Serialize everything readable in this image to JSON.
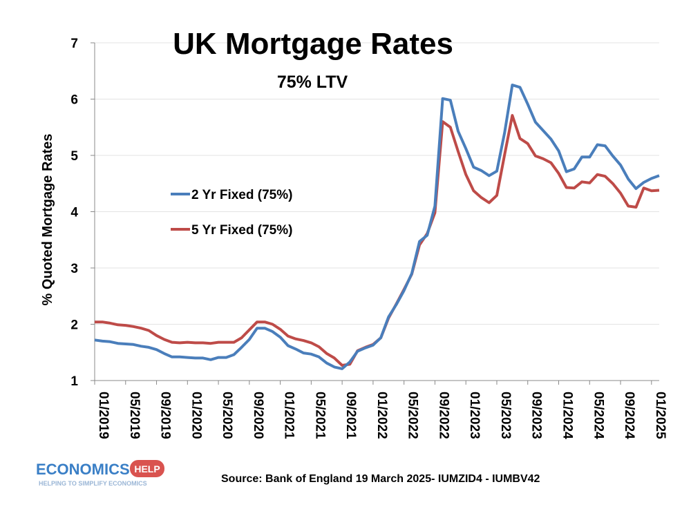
{
  "chart_data": {
    "type": "line",
    "title": "UK Mortgage Rates",
    "subtitle": "75% LTV",
    "ylabel": "% Quoted Mortgage Rates",
    "xlabel": "",
    "ylim": [
      1,
      7
    ],
    "yticks": [
      1,
      2,
      3,
      4,
      5,
      6,
      7
    ],
    "x_tick_labels": [
      "01/2019",
      "05/2019",
      "09/2019",
      "01/2020",
      "05/2020",
      "09/2020",
      "01/2021",
      "05/2021",
      "09/2021",
      "01/2022",
      "05/2022",
      "09/2022",
      "01/2023",
      "05/2023",
      "09/2023",
      "01/2024",
      "05/2024",
      "09/2024",
      "01/2025"
    ],
    "x": [
      "2019-01",
      "2019-02",
      "2019-03",
      "2019-04",
      "2019-05",
      "2019-06",
      "2019-07",
      "2019-08",
      "2019-09",
      "2019-10",
      "2019-11",
      "2019-12",
      "2020-01",
      "2020-02",
      "2020-03",
      "2020-04",
      "2020-05",
      "2020-06",
      "2020-07",
      "2020-08",
      "2020-09",
      "2020-10",
      "2020-11",
      "2020-12",
      "2021-01",
      "2021-02",
      "2021-03",
      "2021-04",
      "2021-05",
      "2021-06",
      "2021-07",
      "2021-08",
      "2021-09",
      "2021-10",
      "2021-11",
      "2021-12",
      "2022-01",
      "2022-02",
      "2022-03",
      "2022-04",
      "2022-05",
      "2022-06",
      "2022-07",
      "2022-08",
      "2022-09",
      "2022-10",
      "2022-11",
      "2022-12",
      "2023-01",
      "2023-02",
      "2023-03",
      "2023-04",
      "2023-05",
      "2023-06",
      "2023-07",
      "2023-08",
      "2023-09",
      "2023-10",
      "2023-11",
      "2023-12",
      "2024-01",
      "2024-02",
      "2024-03",
      "2024-04",
      "2024-05",
      "2024-06",
      "2024-07",
      "2024-08",
      "2024-09",
      "2024-10",
      "2024-11",
      "2024-12",
      "2025-01",
      "2025-02"
    ],
    "legend_position": "middle-left",
    "grid": true,
    "series": [
      {
        "name": "2 Yr Fixed (75%)",
        "color": "#4a7ebb",
        "values": [
          1.72,
          1.7,
          1.69,
          1.66,
          1.65,
          1.64,
          1.61,
          1.59,
          1.55,
          1.48,
          1.42,
          1.42,
          1.41,
          1.4,
          1.4,
          1.37,
          1.41,
          1.41,
          1.46,
          1.59,
          1.73,
          1.93,
          1.93,
          1.87,
          1.77,
          1.62,
          1.56,
          1.49,
          1.47,
          1.42,
          1.31,
          1.24,
          1.21,
          1.33,
          1.52,
          1.58,
          1.63,
          1.76,
          2.13,
          2.35,
          2.6,
          2.9,
          3.47,
          3.58,
          4.1,
          6.01,
          5.98,
          5.43,
          5.12,
          4.79,
          4.73,
          4.64,
          4.72,
          5.4,
          6.25,
          6.21,
          5.91,
          5.59,
          5.44,
          5.29,
          5.08,
          4.71,
          4.76,
          4.97,
          4.97,
          5.19,
          5.17,
          4.99,
          4.83,
          4.58,
          4.41,
          4.52,
          4.59,
          4.64
        ]
      },
      {
        "name": "5 Yr Fixed (75%)",
        "color": "#be4b48",
        "values": [
          2.04,
          2.04,
          2.02,
          1.99,
          1.98,
          1.96,
          1.93,
          1.89,
          1.8,
          1.73,
          1.68,
          1.67,
          1.68,
          1.67,
          1.67,
          1.66,
          1.68,
          1.68,
          1.68,
          1.76,
          1.9,
          2.04,
          2.04,
          2.0,
          1.91,
          1.79,
          1.74,
          1.71,
          1.67,
          1.6,
          1.48,
          1.4,
          1.27,
          1.29,
          1.53,
          1.59,
          1.64,
          1.76,
          2.11,
          2.36,
          2.62,
          2.89,
          3.41,
          3.61,
          3.98,
          5.6,
          5.5,
          5.07,
          4.66,
          4.37,
          4.25,
          4.16,
          4.29,
          5.01,
          5.71,
          5.3,
          5.21,
          4.99,
          4.94,
          4.87,
          4.68,
          4.43,
          4.42,
          4.53,
          4.51,
          4.66,
          4.63,
          4.5,
          4.33,
          4.1,
          4.08,
          4.42,
          4.37,
          4.38
        ]
      }
    ]
  },
  "source": "Source: Bank of England 19 March 2025- IUMZID4 - IUMBV42",
  "logo": {
    "primary": "ECONOMICS",
    "badge": "HELP",
    "tagline": "HELPING TO SIMPLIFY ECONOMICS"
  }
}
